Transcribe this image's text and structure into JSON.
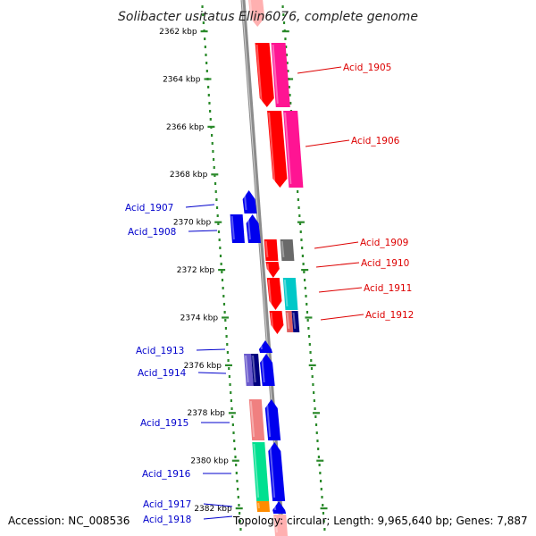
{
  "title": "Solibacter usitatus Ellin6076, complete genome",
  "footer": {
    "accession": "Accession: NC_008536",
    "meta": "Topology: circular; Length: 9,965,640 bp; Genes: 7,887"
  },
  "colors": {
    "ruler": "#2b8a2b",
    "backbone": "#8c8c8c",
    "forward_label": "#0000cc",
    "reverse_label": "#dd0000"
  },
  "ticks": [
    {
      "kbp": 2362,
      "label": "2362 kbp"
    },
    {
      "kbp": 2364,
      "label": "2364 kbp"
    },
    {
      "kbp": 2366,
      "label": "2366 kbp"
    },
    {
      "kbp": 2368,
      "label": "2368 kbp"
    },
    {
      "kbp": 2370,
      "label": "2370 kbp"
    },
    {
      "kbp": 2372,
      "label": "2372 kbp"
    },
    {
      "kbp": 2374,
      "label": "2374 kbp"
    },
    {
      "kbp": 2376,
      "label": "2376 kbp"
    },
    {
      "kbp": 2378,
      "label": "2378 kbp"
    },
    {
      "kbp": 2380,
      "label": "2380 kbp"
    },
    {
      "kbp": 2382,
      "label": "2382 kbp"
    }
  ],
  "genes": [
    {
      "name": "Acid_1905",
      "strand": "reverse",
      "color": "#ff0000"
    },
    {
      "name": "Acid_1906",
      "strand": "reverse",
      "color": "#ff0000"
    },
    {
      "name": "Acid_1907",
      "strand": "forward",
      "color": "#0000ee"
    },
    {
      "name": "Acid_1908",
      "strand": "forward",
      "color": "#0000ee"
    },
    {
      "name": "Acid_1909",
      "strand": "reverse",
      "color": "#ff0000"
    },
    {
      "name": "Acid_1910",
      "strand": "reverse",
      "color": "#ff0000"
    },
    {
      "name": "Acid_1911",
      "strand": "reverse",
      "color": "#ff0000"
    },
    {
      "name": "Acid_1912",
      "strand": "reverse",
      "color": "#ff0000"
    },
    {
      "name": "Acid_1913",
      "strand": "forward",
      "color": "#0000ee"
    },
    {
      "name": "Acid_1914",
      "strand": "forward",
      "color": "#0000ee"
    },
    {
      "name": "Acid_1915",
      "strand": "forward",
      "color": "#0000ee"
    },
    {
      "name": "Acid_1916",
      "strand": "forward",
      "color": "#0000ee"
    },
    {
      "name": "Acid_1917",
      "strand": "forward",
      "color": "#0000ee"
    },
    {
      "name": "Acid_1918",
      "strand": "forward",
      "color": "#0000ee"
    }
  ],
  "feature_colors": [
    "#ff0000",
    "#ff1493",
    "#0000ee",
    "#696969",
    "#00c8c8",
    "#e06060",
    "#000080",
    "#6a5acd",
    "#f08080",
    "#00e090",
    "#ff8c00",
    "#ffb0b0"
  ]
}
